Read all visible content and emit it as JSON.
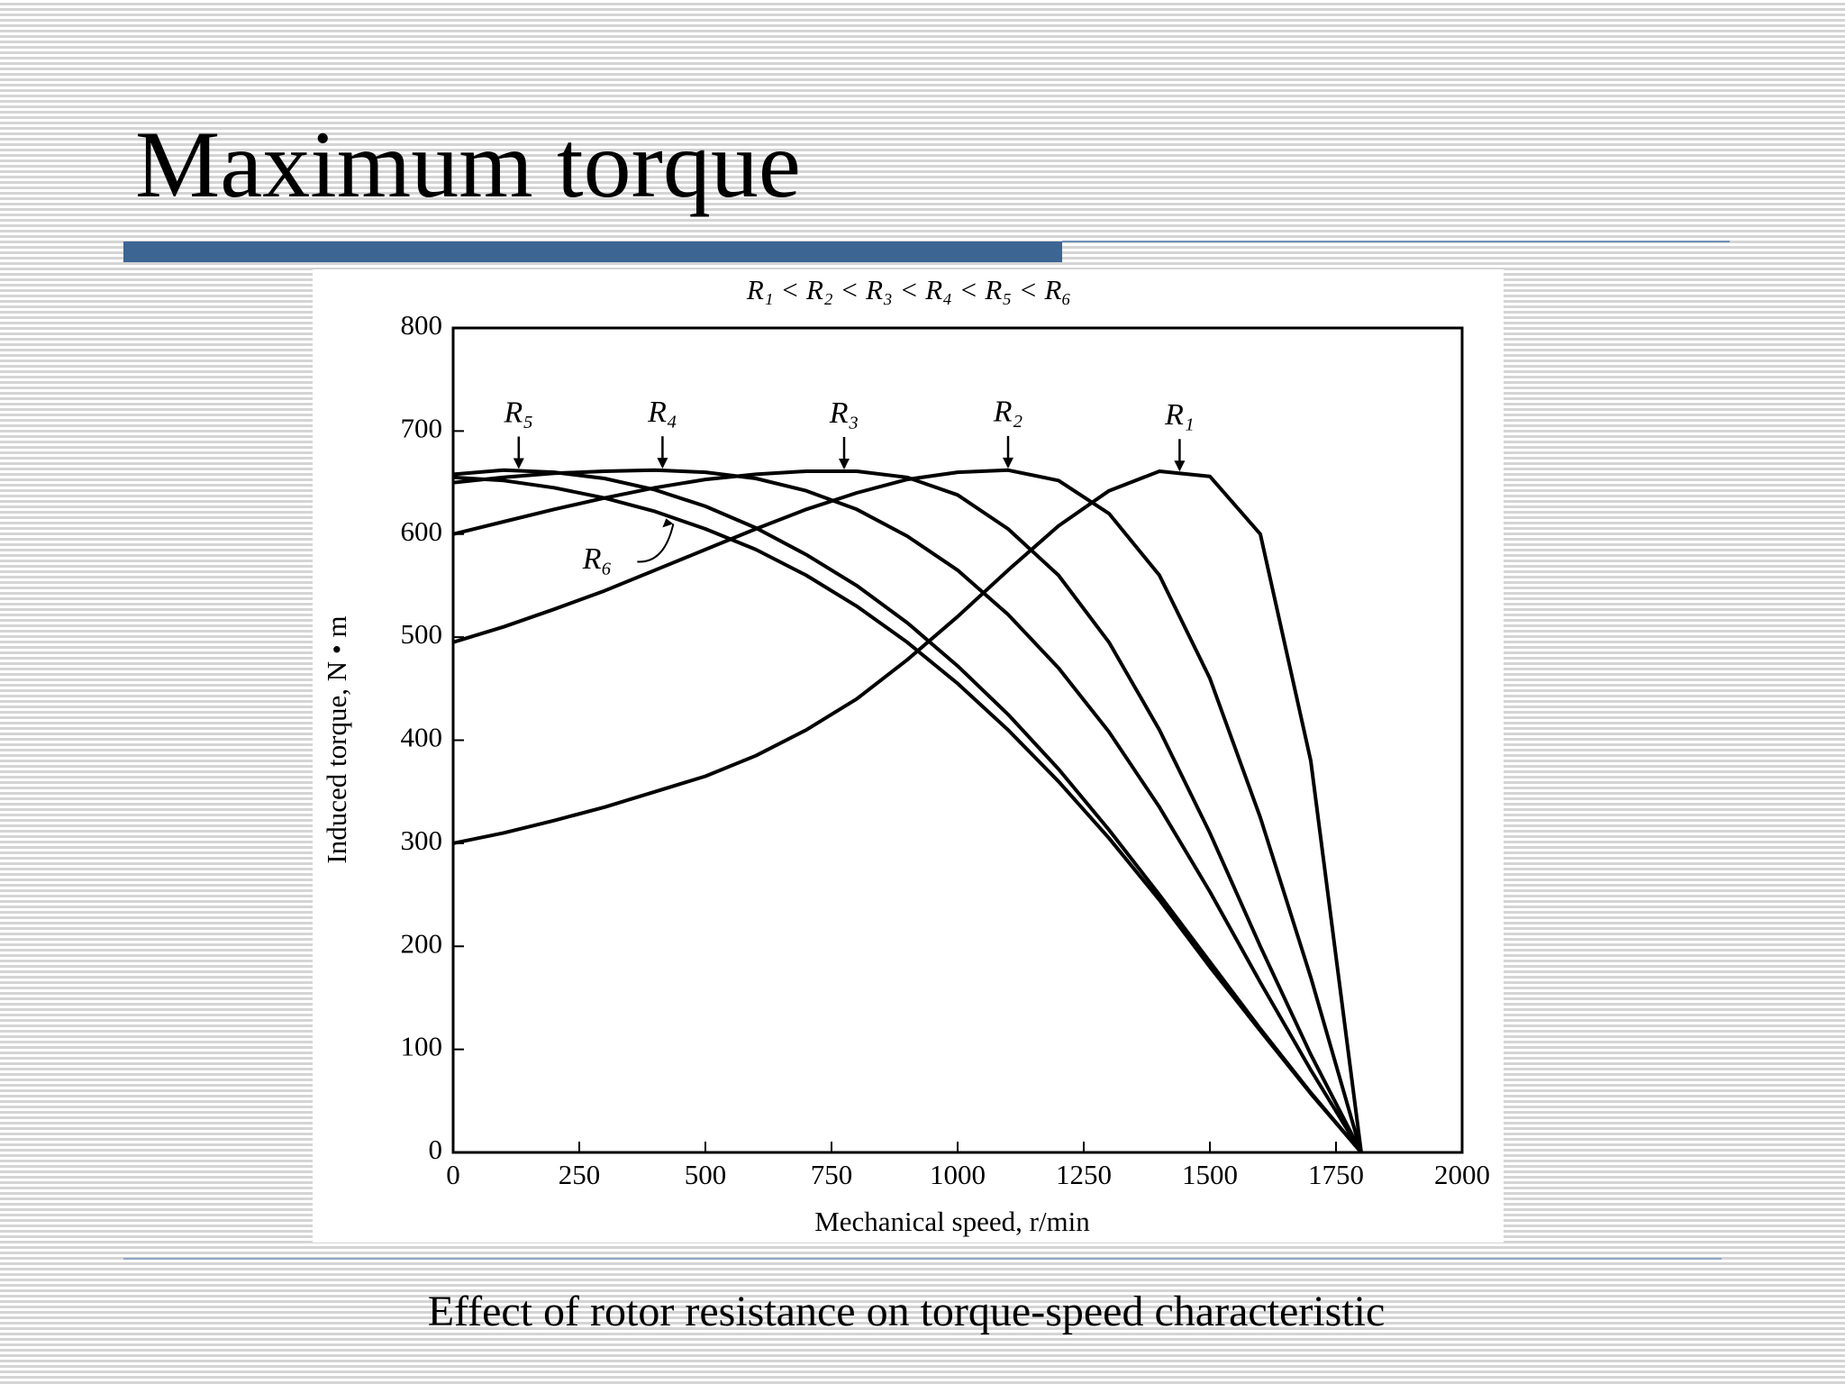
{
  "slide": {
    "title": "Maximum torque",
    "caption": "Effect of rotor resistance on torque-speed characteristic"
  },
  "chart_data": {
    "type": "line",
    "title": "R₁ < R₂ < R₃ < R₄ < R₅ < R₆",
    "x_label": "Mechanical speed, r/min",
    "y_label": "Induced torque, N • m",
    "x": [
      0,
      100,
      200,
      300,
      400,
      500,
      600,
      700,
      800,
      900,
      1000,
      1100,
      1200,
      1300,
      1400,
      1500,
      1600,
      1700,
      1800
    ],
    "series": [
      {
        "name": "R₁",
        "color": "#000000",
        "marker_x": 1440,
        "values": [
          300,
          310,
          322,
          335,
          350,
          365,
          385,
          410,
          440,
          478,
          520,
          565,
          608,
          642,
          661,
          656,
          600,
          380,
          0
        ]
      },
      {
        "name": "R₂",
        "color": "#000000",
        "marker_x": 1100,
        "values": [
          495,
          510,
          527,
          545,
          565,
          585,
          605,
          624,
          640,
          653,
          660,
          662,
          652,
          620,
          560,
          460,
          325,
          170,
          0
        ]
      },
      {
        "name": "R₃",
        "color": "#000000",
        "marker_x": 775,
        "values": [
          600,
          612,
          624,
          635,
          645,
          653,
          658,
          661,
          661,
          655,
          638,
          605,
          560,
          495,
          410,
          310,
          200,
          95,
          0
        ]
      },
      {
        "name": "R₄",
        "color": "#000000",
        "marker_x": 415,
        "values": [
          650,
          655,
          659,
          661,
          662,
          660,
          654,
          642,
          624,
          598,
          565,
          522,
          470,
          408,
          335,
          253,
          165,
          80,
          0
        ]
      },
      {
        "name": "R₅",
        "color": "#000000",
        "marker_x": 130,
        "values": [
          658,
          662,
          660,
          654,
          643,
          627,
          606,
          580,
          550,
          514,
          472,
          425,
          372,
          313,
          250,
          185,
          120,
          58,
          0
        ]
      },
      {
        "name": "R₆",
        "color": "#000000",
        "marker_x": 440,
        "values": [
          655,
          652,
          645,
          635,
          622,
          605,
          585,
          560,
          530,
          495,
          455,
          410,
          360,
          305,
          245,
          180,
          118,
          57,
          0
        ]
      }
    ],
    "xlim": [
      0,
      2000
    ],
    "xticks": [
      0,
      250,
      500,
      750,
      1000,
      1250,
      1500,
      1750,
      2000
    ],
    "ylim": [
      0,
      800
    ],
    "yticks": [
      0,
      100,
      200,
      300,
      400,
      500,
      600,
      700,
      800
    ],
    "grid": false
  }
}
